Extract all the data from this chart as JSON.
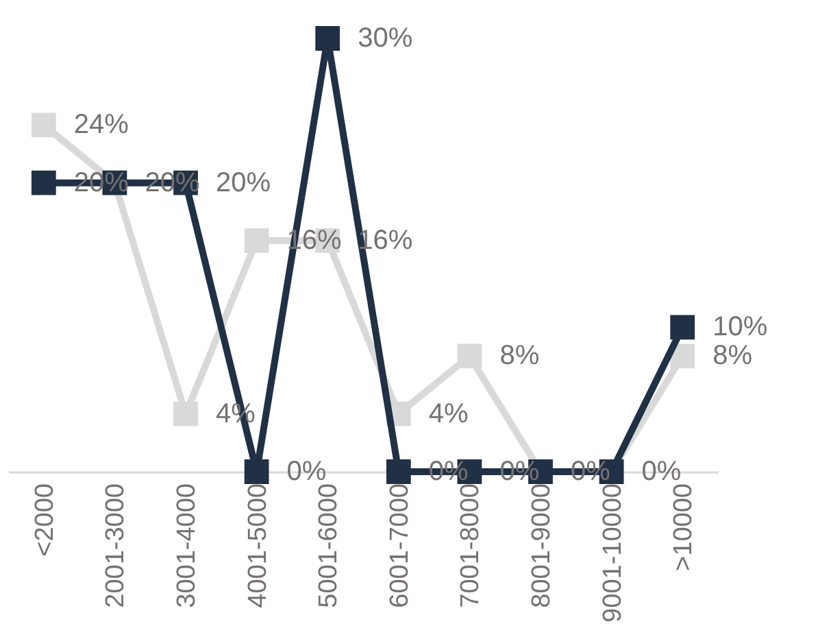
{
  "chart_data": {
    "type": "line",
    "categories": [
      "<2000",
      "2001-3000",
      "3001-4000",
      "4001-5000",
      "5001-6000",
      "6001-7000",
      "7001-8000",
      "8001-9000",
      "9001-10000",
      ">10000"
    ],
    "series": [
      {
        "color": "#d9d9d9",
        "values": [
          24,
          20,
          4,
          16,
          16,
          4,
          8,
          0,
          0,
          8
        ],
        "value_labels": [
          "24%",
          null,
          "4%",
          "16%",
          "16%",
          "4%",
          "8%",
          null,
          null,
          "8%"
        ]
      },
      {
        "color": "#203045",
        "values": [
          20,
          20,
          20,
          0,
          30,
          0,
          0,
          0,
          0,
          10
        ],
        "value_labels": [
          "20%",
          "20%",
          "20%",
          "0%",
          "30%",
          "0%",
          "0%",
          "0%",
          "0%",
          "10%"
        ]
      }
    ],
    "marker": "square",
    "grid": false,
    "tick_labels": "x"
  }
}
